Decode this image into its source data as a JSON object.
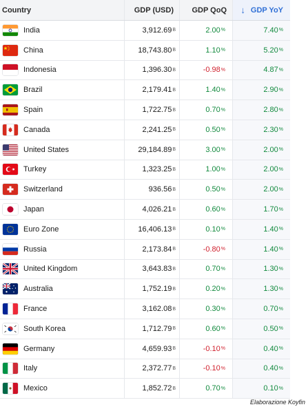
{
  "header": {
    "country": "Country",
    "gdp": "GDP (USD)",
    "qoq": "GDP QoQ",
    "yoy": "GDP YoY",
    "sort_icon": "arrow-down-icon"
  },
  "rows": [
    {
      "country": "India",
      "gdp": "3,912.69",
      "gdp_unit": "B",
      "qoq": "2.00",
      "qoq_unit": "%",
      "yoy": "7.40",
      "yoy_unit": "%",
      "qoq_sign": "pos",
      "yoy_sign": "pos",
      "flag": "india"
    },
    {
      "country": "China",
      "gdp": "18,743.80",
      "gdp_unit": "B",
      "qoq": "1.10",
      "qoq_unit": "%",
      "yoy": "5.20",
      "yoy_unit": "%",
      "qoq_sign": "pos",
      "yoy_sign": "pos",
      "flag": "china"
    },
    {
      "country": "Indonesia",
      "gdp": "1,396.30",
      "gdp_unit": "B",
      "qoq": "-0.98",
      "qoq_unit": "%",
      "yoy": "4.87",
      "yoy_unit": "%",
      "qoq_sign": "neg",
      "yoy_sign": "pos",
      "flag": "indonesia"
    },
    {
      "country": "Brazil",
      "gdp": "2,179.41",
      "gdp_unit": "B",
      "qoq": "1.40",
      "qoq_unit": "%",
      "yoy": "2.90",
      "yoy_unit": "%",
      "qoq_sign": "pos",
      "yoy_sign": "pos",
      "flag": "brazil"
    },
    {
      "country": "Spain",
      "gdp": "1,722.75",
      "gdp_unit": "B",
      "qoq": "0.70",
      "qoq_unit": "%",
      "yoy": "2.80",
      "yoy_unit": "%",
      "qoq_sign": "pos",
      "yoy_sign": "pos",
      "flag": "spain"
    },
    {
      "country": "Canada",
      "gdp": "2,241.25",
      "gdp_unit": "B",
      "qoq": "0.50",
      "qoq_unit": "%",
      "yoy": "2.30",
      "yoy_unit": "%",
      "qoq_sign": "pos",
      "yoy_sign": "pos",
      "flag": "canada"
    },
    {
      "country": "United States",
      "gdp": "29,184.89",
      "gdp_unit": "B",
      "qoq": "3.00",
      "qoq_unit": "%",
      "yoy": "2.00",
      "yoy_unit": "%",
      "qoq_sign": "pos",
      "yoy_sign": "pos",
      "flag": "usa"
    },
    {
      "country": "Turkey",
      "gdp": "1,323.25",
      "gdp_unit": "B",
      "qoq": "1.00",
      "qoq_unit": "%",
      "yoy": "2.00",
      "yoy_unit": "%",
      "qoq_sign": "pos",
      "yoy_sign": "pos",
      "flag": "turkey"
    },
    {
      "country": "Switzerland",
      "gdp": "936.56",
      "gdp_unit": "B",
      "qoq": "0.50",
      "qoq_unit": "%",
      "yoy": "2.00",
      "yoy_unit": "%",
      "qoq_sign": "pos",
      "yoy_sign": "pos",
      "flag": "switzerland"
    },
    {
      "country": "Japan",
      "gdp": "4,026.21",
      "gdp_unit": "B",
      "qoq": "0.60",
      "qoq_unit": "%",
      "yoy": "1.70",
      "yoy_unit": "%",
      "qoq_sign": "pos",
      "yoy_sign": "pos",
      "flag": "japan"
    },
    {
      "country": "Euro Zone",
      "gdp": "16,406.13",
      "gdp_unit": "B",
      "qoq": "0.10",
      "qoq_unit": "%",
      "yoy": "1.40",
      "yoy_unit": "%",
      "qoq_sign": "pos",
      "yoy_sign": "pos",
      "flag": "eu"
    },
    {
      "country": "Russia",
      "gdp": "2,173.84",
      "gdp_unit": "B",
      "qoq": "-0.80",
      "qoq_unit": "%",
      "yoy": "1.40",
      "yoy_unit": "%",
      "qoq_sign": "neg",
      "yoy_sign": "pos",
      "flag": "russia"
    },
    {
      "country": "United Kingdom",
      "gdp": "3,643.83",
      "gdp_unit": "B",
      "qoq": "0.70",
      "qoq_unit": "%",
      "yoy": "1.30",
      "yoy_unit": "%",
      "qoq_sign": "pos",
      "yoy_sign": "pos",
      "flag": "uk"
    },
    {
      "country": "Australia",
      "gdp": "1,752.19",
      "gdp_unit": "B",
      "qoq": "0.20",
      "qoq_unit": "%",
      "yoy": "1.30",
      "yoy_unit": "%",
      "qoq_sign": "pos",
      "yoy_sign": "pos",
      "flag": "australia"
    },
    {
      "country": "France",
      "gdp": "3,162.08",
      "gdp_unit": "B",
      "qoq": "0.30",
      "qoq_unit": "%",
      "yoy": "0.70",
      "yoy_unit": "%",
      "qoq_sign": "pos",
      "yoy_sign": "pos",
      "flag": "france"
    },
    {
      "country": "South Korea",
      "gdp": "1,712.79",
      "gdp_unit": "B",
      "qoq": "0.60",
      "qoq_unit": "%",
      "yoy": "0.50",
      "yoy_unit": "%",
      "qoq_sign": "pos",
      "yoy_sign": "pos",
      "flag": "south-korea"
    },
    {
      "country": "Germany",
      "gdp": "4,659.93",
      "gdp_unit": "B",
      "qoq": "-0.10",
      "qoq_unit": "%",
      "yoy": "0.40",
      "yoy_unit": "%",
      "qoq_sign": "neg",
      "yoy_sign": "pos",
      "flag": "germany"
    },
    {
      "country": "Italy",
      "gdp": "2,372.77",
      "gdp_unit": "B",
      "qoq": "-0.10",
      "qoq_unit": "%",
      "yoy": "0.40",
      "yoy_unit": "%",
      "qoq_sign": "neg",
      "yoy_sign": "pos",
      "flag": "italy"
    },
    {
      "country": "Mexico",
      "gdp": "1,852.72",
      "gdp_unit": "B",
      "qoq": "0.70",
      "qoq_unit": "%",
      "yoy": "0.10",
      "yoy_unit": "%",
      "qoq_sign": "pos",
      "yoy_sign": "pos",
      "flag": "mexico"
    }
  ],
  "colors": {
    "positive": "#128a3e",
    "negative": "#d0222f",
    "accent": "#2f6fd6"
  },
  "footer": {
    "credit": "Elaborazione Koyfin"
  }
}
